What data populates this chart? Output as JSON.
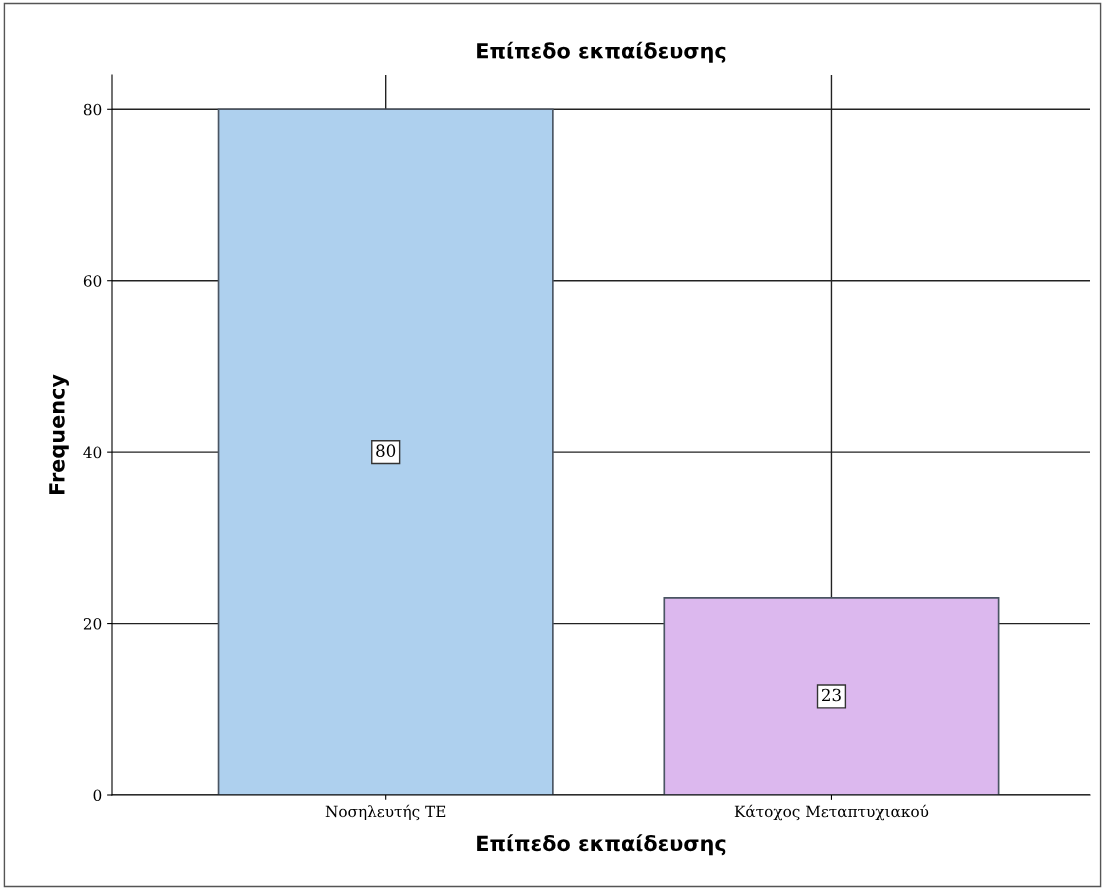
{
  "chart_data": {
    "type": "bar",
    "title": "Επίπεδο εκπαίδευσης",
    "xlabel": "Επίπεδο εκπαίδευσης",
    "ylabel": "Frequency",
    "categories": [
      "Νοσηλευτής ΤΕ",
      "Κάτοχος Μεταπτυχιακού"
    ],
    "values": [
      80,
      23
    ],
    "colors": [
      "#aed0ee",
      "#dcb8ee"
    ],
    "ylim": [
      0,
      84
    ],
    "yticks": [
      0,
      20,
      40,
      60,
      80
    ],
    "grid": true,
    "data_labels": true
  }
}
